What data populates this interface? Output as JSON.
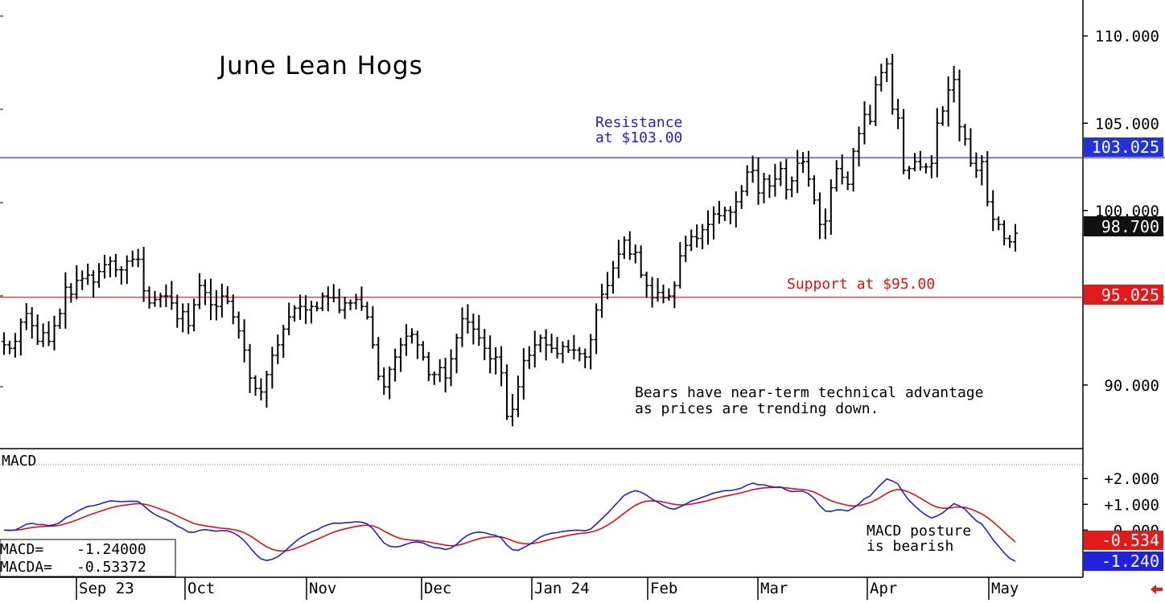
{
  "chart_data": [
    {
      "type": "ohlc",
      "title": "June Lean Hogs",
      "x_labels": [
        "Sep 23",
        "Oct",
        "Nov",
        "Dec",
        "Jan 24",
        "Feb",
        "Mar",
        "Apr",
        "May"
      ],
      "y_ticks": [
        "110.000",
        "105.000",
        "100.000",
        "90.000"
      ],
      "ylim": [
        87.0,
        111.0
      ],
      "horizontal_lines": [
        {
          "name": "resistance",
          "value": 103.025,
          "label_text": "103.025",
          "color": "#3333cc"
        },
        {
          "name": "support",
          "value": 95.025,
          "label_text": "95.025",
          "color": "#dd1111"
        }
      ],
      "last_price": {
        "value": 98.7,
        "label_text": "98.700"
      },
      "annotations": {
        "resistance_line1": "Resistance",
        "resistance_line2": "at $103.00",
        "support": "Support at $95.00",
        "comment_line1": "Bears have near-term technical advantage",
        "comment_line2": "as prices are trending down."
      },
      "closes": [
        92.3,
        92.1,
        92.5,
        93.6,
        94.1,
        93.4,
        92.5,
        93.0,
        92.5,
        93.4,
        94.1,
        95.6,
        95.2,
        96.0,
        96.1,
        96.3,
        95.9,
        96.5,
        96.9,
        97.1,
        96.6,
        96.6,
        97.1,
        97.2,
        97.2,
        95.4,
        94.7,
        94.9,
        95.1,
        95.1,
        94.7,
        93.8,
        94.2,
        93.4,
        94.6,
        95.7,
        95.3,
        94.6,
        94.5,
        95.1,
        94.8,
        93.9,
        93.1,
        92.0,
        90.4,
        89.8,
        89.6,
        90.6,
        91.7,
        92.3,
        93.2,
        93.9,
        94.4,
        94.5,
        94.3,
        94.5,
        94.4,
        95.1,
        95.0,
        95.0,
        94.3,
        94.7,
        94.7,
        94.9,
        94.5,
        93.9,
        92.3,
        90.5,
        89.9,
        90.9,
        91.6,
        92.3,
        92.8,
        92.9,
        92.3,
        91.6,
        90.6,
        90.6,
        91.0,
        90.4,
        91.5,
        92.7,
        93.8,
        93.6,
        93.2,
        92.7,
        92.1,
        91.5,
        91.6,
        90.7,
        88.2,
        88.6,
        89.9,
        91.4,
        91.7,
        92.3,
        92.7,
        92.3,
        92.1,
        91.8,
        92.2,
        92.0,
        92.0,
        91.8,
        91.6,
        92.6,
        94.3,
        95.2,
        95.7,
        96.7,
        97.5,
        98.3,
        97.5,
        97.6,
        96.3,
        95.7,
        95.0,
        95.3,
        95.0,
        95.1,
        95.7,
        97.4,
        98.0,
        98.5,
        98.4,
        98.9,
        99.2,
        99.8,
        99.7,
        100.0,
        99.9,
        100.5,
        101.1,
        102.2,
        102.3,
        101.0,
        101.8,
        101.4,
        101.8,
        102.4,
        101.2,
        101.7,
        102.7,
        102.8,
        101.8,
        100.6,
        99.2,
        99.4,
        101.3,
        102.4,
        101.9,
        101.5,
        103.4,
        104.4,
        105.5,
        105.1,
        107.2,
        107.9,
        108.4,
        105.8,
        105.3,
        102.3,
        102.4,
        102.8,
        102.5,
        102.5,
        102.7,
        105.0,
        105.7,
        106.9,
        107.5,
        104.8,
        104.1,
        102.7,
        102.3,
        102.8,
        100.5,
        99.5,
        99.2,
        98.4,
        98.2,
        98.7
      ],
      "macd_panel": {
        "label": "MACD",
        "y_ticks": [
          "+2.000",
          "+1.000",
          "0.000"
        ],
        "ylim": [
          -1.8,
          2.6
        ],
        "readout": {
          "macd_label": "MACD=",
          "macd_value": "-1.24000",
          "macda_label": "MACDA=",
          "macda_value": "-0.53372"
        },
        "value_boxes": [
          {
            "name": "macda",
            "text": "-0.534",
            "color": "#dd1111"
          },
          {
            "name": "macd",
            "text": "-1.240",
            "color": "#2222cc"
          }
        ],
        "annotation_line1": "MACD posture",
        "annotation_line2": "is bearish",
        "series": [
          {
            "name": "MACD",
            "color": "#2222cc"
          },
          {
            "name": "MACDA",
            "color": "#dd1111"
          }
        ]
      }
    }
  ]
}
